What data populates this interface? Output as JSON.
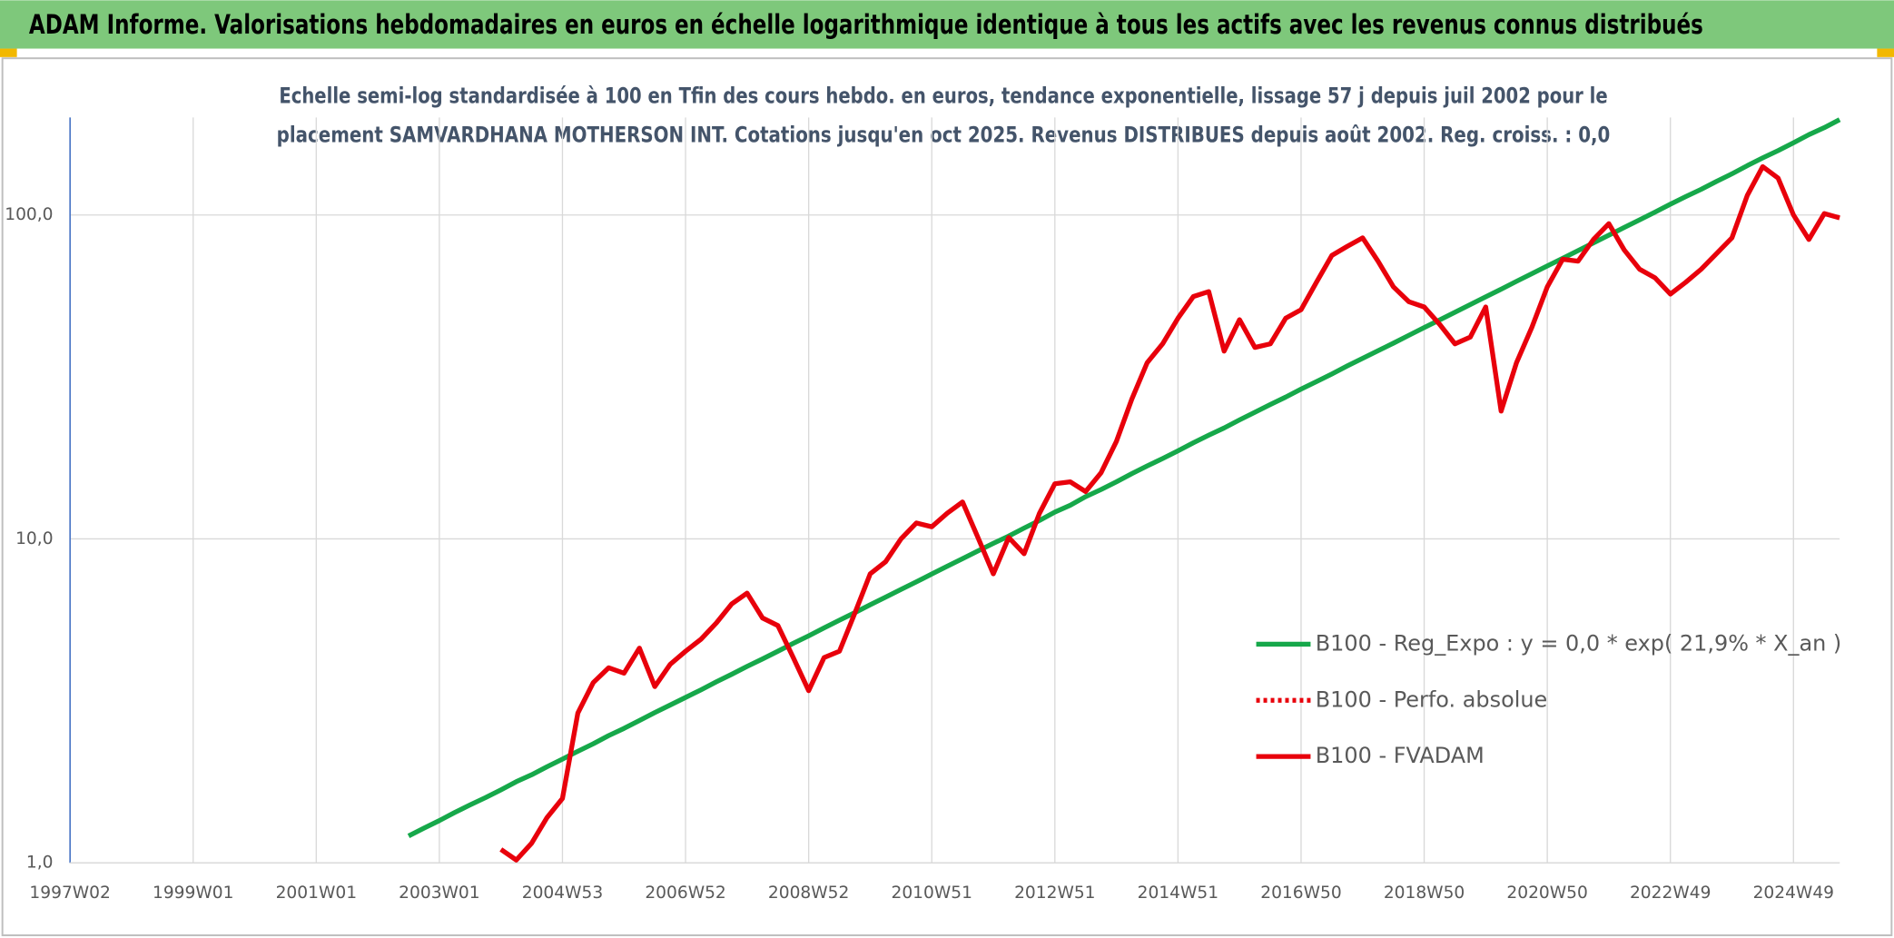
{
  "chart_data": {
    "type": "line",
    "title": "ADAM Informe. Valorisations hebdomadaires en euros en échelle logarithmique identique à tous les actifs avec les revenus connus distribués",
    "subtitle": [
      "Echelle semi-log standardisée à 100 en Tfin des cours hebdo. en euros, tendance exponentielle, lissage 57 j depuis juil 2002 pour le",
      "placement SAMVARDHANA MOTHERSON INT. Cotations jusqu'en oct 2025. Revenus DISTRIBUES depuis août 2002. Reg. croiss. : 0,0"
    ],
    "log_scale": true,
    "grid": true,
    "ylim": [
      1,
      200
    ],
    "yticks": [
      {
        "value": 1,
        "label": "1,0"
      },
      {
        "value": 10,
        "label": "10,0"
      },
      {
        "value": 100,
        "label": "100,0"
      }
    ],
    "x": [
      "1997W02",
      null,
      null,
      null,
      null,
      null,
      null,
      null,
      "1999W01",
      null,
      null,
      null,
      null,
      null,
      null,
      null,
      "2001W01",
      null,
      null,
      null,
      null,
      null,
      null,
      null,
      "2003W01",
      null,
      null,
      null,
      null,
      null,
      null,
      null,
      "2004W53",
      null,
      null,
      null,
      null,
      null,
      null,
      null,
      "2006W52",
      null,
      null,
      null,
      null,
      null,
      null,
      null,
      "2008W52",
      null,
      null,
      null,
      null,
      null,
      null,
      null,
      "2010W51",
      null,
      null,
      null,
      null,
      null,
      null,
      null,
      "2012W51",
      null,
      null,
      null,
      null,
      null,
      null,
      null,
      "2014W51",
      null,
      null,
      null,
      null,
      null,
      null,
      null,
      "2016W50",
      null,
      null,
      null,
      null,
      null,
      null,
      null,
      "2018W50",
      null,
      null,
      null,
      null,
      null,
      null,
      null,
      "2020W50",
      null,
      null,
      null,
      null,
      null,
      null,
      null,
      "2022W49",
      null,
      null,
      null,
      null,
      null,
      null,
      null,
      "2024W49",
      null,
      null,
      null
    ],
    "legend_position": "right",
    "series": [
      {
        "name": "B100 - Reg_Expo : y = 0,0 * exp( 21,9% *  X_an )",
        "color": "#16a84a",
        "style": "solid",
        "values": [
          null,
          null,
          null,
          null,
          null,
          null,
          null,
          null,
          null,
          null,
          null,
          null,
          null,
          null,
          null,
          null,
          null,
          null,
          null,
          null,
          null,
          null,
          1.21,
          1.28,
          1.35,
          1.43,
          1.51,
          1.59,
          1.68,
          1.78,
          1.87,
          1.98,
          2.09,
          2.21,
          2.33,
          2.47,
          2.6,
          2.75,
          2.91,
          3.07,
          3.24,
          3.42,
          3.62,
          3.82,
          4.04,
          4.26,
          4.5,
          4.76,
          5.02,
          5.31,
          5.61,
          5.92,
          6.26,
          6.61,
          6.98,
          7.37,
          7.79,
          8.23,
          8.69,
          9.18,
          9.69,
          10.2,
          10.8,
          11.4,
          12.1,
          12.7,
          13.5,
          14.2,
          15.0,
          15.9,
          16.8,
          17.7,
          18.7,
          19.8,
          20.9,
          22.0,
          23.3,
          24.6,
          26.0,
          27.4,
          29.0,
          30.6,
          32.3,
          34.2,
          36.1,
          38.1,
          40.2,
          42.5,
          44.9,
          47.4,
          50.1,
          52.9,
          55.9,
          59.0,
          62.4,
          65.9,
          69.6,
          73.5,
          77.6,
          82.0,
          86.6,
          91.5,
          96.6,
          102,
          108,
          114,
          120,
          127,
          134,
          142,
          150,
          158,
          167,
          177,
          186,
          197
        ]
      },
      {
        "name": "B100 - Perfo. absolue",
        "color": "#e8000b",
        "style": "dotted"
      },
      {
        "name": "B100 - FVADAM",
        "color": "#e8000b",
        "style": "solid",
        "values": [
          null,
          null,
          null,
          null,
          null,
          null,
          null,
          null,
          null,
          null,
          null,
          null,
          null,
          null,
          null,
          null,
          null,
          null,
          null,
          null,
          null,
          null,
          null,
          null,
          null,
          null,
          null,
          null,
          1.1,
          1.02,
          1.15,
          1.38,
          1.58,
          2.9,
          3.6,
          4.0,
          3.85,
          4.6,
          3.5,
          4.1,
          4.5,
          4.9,
          5.5,
          6.3,
          6.8,
          5.7,
          5.4,
          4.3,
          3.4,
          4.3,
          4.5,
          5.9,
          7.8,
          8.5,
          10.0,
          11.2,
          10.9,
          12.0,
          13.0,
          10.1,
          7.8,
          10.1,
          9.0,
          12.0,
          14.8,
          15.0,
          14.0,
          16.0,
          20.0,
          27,
          35,
          40,
          48,
          56,
          58,
          38,
          47.5,
          39,
          40,
          48,
          51,
          62,
          75,
          80,
          85,
          72,
          60,
          54,
          52,
          46,
          40,
          42,
          52,
          24.8,
          35,
          45,
          60,
          73,
          72,
          84,
          94,
          78,
          68,
          64,
          57,
          62,
          68,
          76,
          85,
          115,
          141,
          130,
          100,
          84,
          101,
          98
        ]
      }
    ]
  }
}
